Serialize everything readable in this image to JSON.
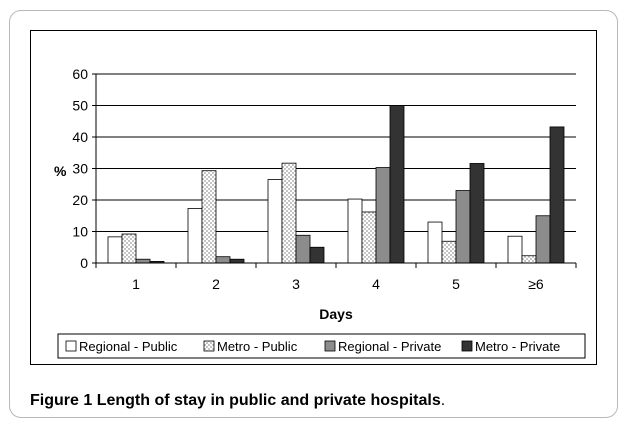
{
  "chart_data": {
    "type": "bar",
    "categories": [
      "1",
      "2",
      "3",
      "4",
      "5",
      "≥6"
    ],
    "series": [
      {
        "name": "Regional - Public",
        "values": [
          8.3,
          17.3,
          26.5,
          20.3,
          13.0,
          8.5
        ],
        "color": "#ffffff",
        "pattern": "none"
      },
      {
        "name": "Metro - Public",
        "values": [
          9.2,
          29.3,
          31.7,
          16.2,
          6.9,
          2.3
        ],
        "color": "#ffffff",
        "pattern": "dots"
      },
      {
        "name": "Regional - Private",
        "values": [
          1.2,
          2.0,
          8.8,
          30.3,
          23.0,
          15.0
        ],
        "color": "#8c8c8c",
        "pattern": "none"
      },
      {
        "name": "Metro - Private",
        "values": [
          0.5,
          1.2,
          5.0,
          50.0,
          31.6,
          43.2
        ],
        "color": "#333333",
        "pattern": "none"
      }
    ],
    "xlabel": "Days",
    "ylabel": "%",
    "ylim": [
      0,
      60
    ],
    "yticks": [
      0,
      10,
      20,
      30,
      40,
      50,
      60
    ],
    "grid": true,
    "legend_position": "bottom"
  },
  "caption": {
    "figure_label": "Figure 1",
    "title": "Length of stay in public and private hospitals",
    "end_punct": "."
  }
}
